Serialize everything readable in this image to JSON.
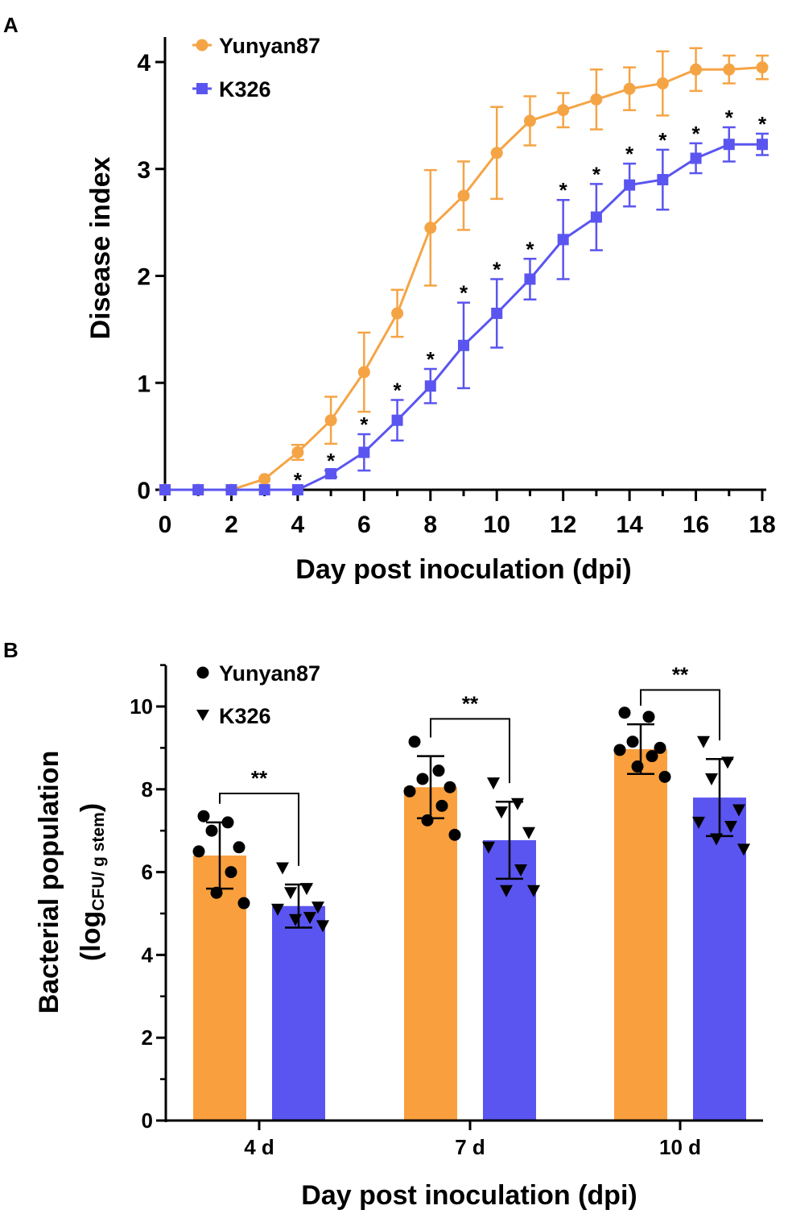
{
  "chart_data": [
    {
      "panel": "A",
      "type": "line",
      "xlabel": "Day post inoculation (dpi)",
      "ylabel": "Disease index",
      "xlim": [
        0,
        18
      ],
      "ylim": [
        0,
        4
      ],
      "xticks": [
        "0",
        "2",
        "4",
        "6",
        "8",
        "10",
        "12",
        "14",
        "16",
        "18"
      ],
      "yticks": [
        "0",
        "1",
        "2",
        "3",
        "4"
      ],
      "x": [
        0,
        1,
        2,
        3,
        4,
        5,
        6,
        7,
        8,
        9,
        10,
        11,
        12,
        13,
        14,
        15,
        16,
        17,
        18
      ],
      "series": [
        {
          "name": "Yunyan87",
          "color": "#f5a445",
          "marker": "circle",
          "values": [
            0,
            0,
            0,
            0.1,
            0.35,
            0.65,
            1.1,
            1.65,
            2.45,
            2.75,
            3.15,
            3.45,
            3.55,
            3.65,
            3.75,
            3.8,
            3.93,
            3.93,
            3.95
          ],
          "errors": [
            0,
            0,
            0,
            0,
            0.07,
            0.22,
            0.37,
            0.22,
            0.54,
            0.32,
            0.43,
            0.23,
            0.16,
            0.28,
            0.2,
            0.3,
            0.2,
            0.13,
            0.11
          ]
        },
        {
          "name": "K326",
          "color": "#5a55f0",
          "marker": "square",
          "values": [
            0,
            0,
            0,
            0,
            0,
            0.15,
            0.35,
            0.65,
            0.97,
            1.35,
            1.65,
            1.97,
            2.34,
            2.55,
            2.85,
            2.9,
            3.1,
            3.23,
            3.23
          ],
          "errors": [
            0,
            0,
            0,
            0,
            0,
            0.03,
            0.17,
            0.19,
            0.16,
            0.4,
            0.32,
            0.19,
            0.37,
            0.31,
            0.2,
            0.28,
            0.14,
            0.16,
            0.1
          ]
        }
      ],
      "annotations": {
        "text": "*",
        "x": [
          4,
          5,
          6,
          7,
          8,
          9,
          10,
          11,
          12,
          13,
          14,
          15,
          16,
          17,
          18
        ]
      }
    },
    {
      "panel": "B",
      "type": "bar",
      "xlabel": "Day post inoculation (dpi)",
      "ylabel_line1": "Bacterial population",
      "ylabel_line2_main": "(log",
      "ylabel_line2_sub": "CFU/ g stem",
      "ylabel_line2_end": ")",
      "ylim": [
        0,
        11
      ],
      "yticks": [
        "0",
        "2",
        "4",
        "6",
        "8",
        "10"
      ],
      "categories": [
        "4 d",
        "7 d",
        "10 d"
      ],
      "series": [
        {
          "name": "Yunyan87",
          "color": "#fa9f3e",
          "marker": "circle",
          "values": [
            6.4,
            8.05,
            8.97
          ],
          "errors": [
            0.8,
            0.75,
            0.6
          ],
          "points": [
            [
              7.35,
              7.2,
              7.0,
              6.6,
              6.5,
              6.0,
              5.5,
              5.25
            ],
            [
              9.15,
              8.45,
              8.25,
              8.05,
              7.95,
              7.6,
              7.25,
              6.9
            ],
            [
              9.85,
              9.75,
              9.15,
              9.0,
              8.95,
              8.8,
              8.55,
              8.3
            ]
          ]
        },
        {
          "name": "K326",
          "color": "#5a55f0",
          "marker": "triangle-down",
          "values": [
            5.18,
            6.77,
            7.8
          ],
          "errors": [
            0.52,
            0.93,
            0.93
          ],
          "points": [
            [
              6.1,
              5.6,
              5.5,
              5.15,
              5.1,
              4.9,
              4.85,
              4.7
            ],
            [
              8.15,
              7.65,
              7.45,
              6.95,
              6.6,
              6.05,
              5.55,
              5.55
            ],
            [
              9.15,
              8.65,
              8.25,
              7.5,
              7.2,
              7.1,
              6.8,
              6.55
            ]
          ]
        }
      ],
      "significance": [
        "**",
        "**",
        "**"
      ]
    }
  ]
}
